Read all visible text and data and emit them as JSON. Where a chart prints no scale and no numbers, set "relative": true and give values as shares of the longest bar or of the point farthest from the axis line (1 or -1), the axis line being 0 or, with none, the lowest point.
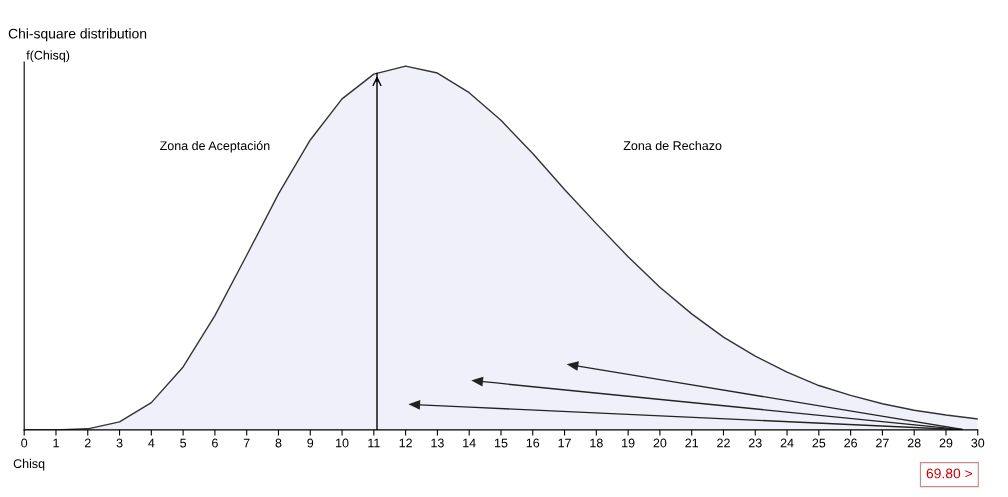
{
  "chart_data": {
    "type": "area",
    "title": "Chi-square distribution",
    "xlabel": "Chisq",
    "ylabel": "f(Chisq)",
    "relative": true,
    "x": [
      0,
      1,
      2,
      3,
      4,
      5,
      6,
      7,
      8,
      9,
      10,
      11,
      12,
      13,
      14,
      15,
      16,
      17,
      18,
      19,
      20,
      21,
      22,
      23,
      24,
      25,
      26,
      27,
      28,
      29,
      30
    ],
    "series": [
      {
        "color": "#333333",
        "values": [
          0,
          0.0001,
          0.003,
          0.022,
          0.075,
          0.173,
          0.314,
          0.48,
          0.649,
          0.797,
          0.91,
          0.978,
          1,
          0.981,
          0.927,
          0.851,
          0.76,
          0.661,
          0.567,
          0.476,
          0.392,
          0.319,
          0.255,
          0.203,
          0.159,
          0.122,
          0.095,
          0.072,
          0.054,
          0.041,
          0.03
        ]
      }
    ],
    "xlim": [
      0,
      30
    ],
    "xticks": [
      0,
      1,
      2,
      3,
      4,
      5,
      6,
      7,
      8,
      9,
      10,
      11,
      12,
      13,
      14,
      15,
      16,
      17,
      18,
      19,
      20,
      21,
      22,
      23,
      24,
      25,
      26,
      27,
      28,
      29,
      30
    ],
    "ref_lines": [
      {
        "axis": "x",
        "value": 11.1,
        "color": "#000000"
      }
    ],
    "annotations": [
      "Zona de Aceptación",
      "Zona de Rechazo",
      "69.80 >"
    ],
    "grid": false,
    "legend": false
  }
}
